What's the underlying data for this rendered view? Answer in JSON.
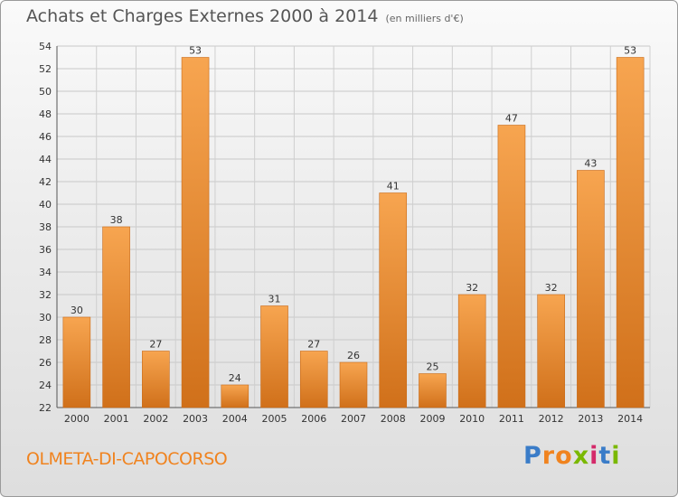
{
  "header": {
    "title": "Achats et Charges Externes 2000 à 2014",
    "unit": "(en milliers d'€)"
  },
  "footer": {
    "commune": "OLMETA-DI-CAPOCORSO",
    "logo_letters": [
      "P",
      "r",
      "o",
      "x",
      "i",
      "t",
      "i"
    ]
  },
  "colors": {
    "bar_light": "#f7a550",
    "bar_dark": "#d0701a",
    "commune": "#f0831f",
    "logo": [
      "#3a7cc8",
      "#f0831f",
      "#f0831f",
      "#7ab800",
      "#d42a6a",
      "#3a7cc8",
      "#7ab800"
    ]
  },
  "chart_data": {
    "type": "bar",
    "title": "Achats et Charges Externes 2000 à 2014",
    "subtitle": "(en milliers d'€)",
    "xlabel": "",
    "ylabel": "",
    "categories": [
      "2000",
      "2001",
      "2002",
      "2003",
      "2004",
      "2005",
      "2006",
      "2007",
      "2008",
      "2009",
      "2010",
      "2011",
      "2012",
      "2013",
      "2014"
    ],
    "values": [
      30,
      38,
      27,
      53,
      24,
      31,
      27,
      26,
      41,
      25,
      32,
      47,
      32,
      43,
      53
    ],
    "ylim": [
      22,
      54
    ],
    "yticks": [
      22,
      24,
      26,
      28,
      30,
      32,
      34,
      36,
      38,
      40,
      42,
      44,
      46,
      48,
      50,
      52,
      54
    ],
    "grid": true,
    "legend": "none",
    "data_labels": true
  }
}
